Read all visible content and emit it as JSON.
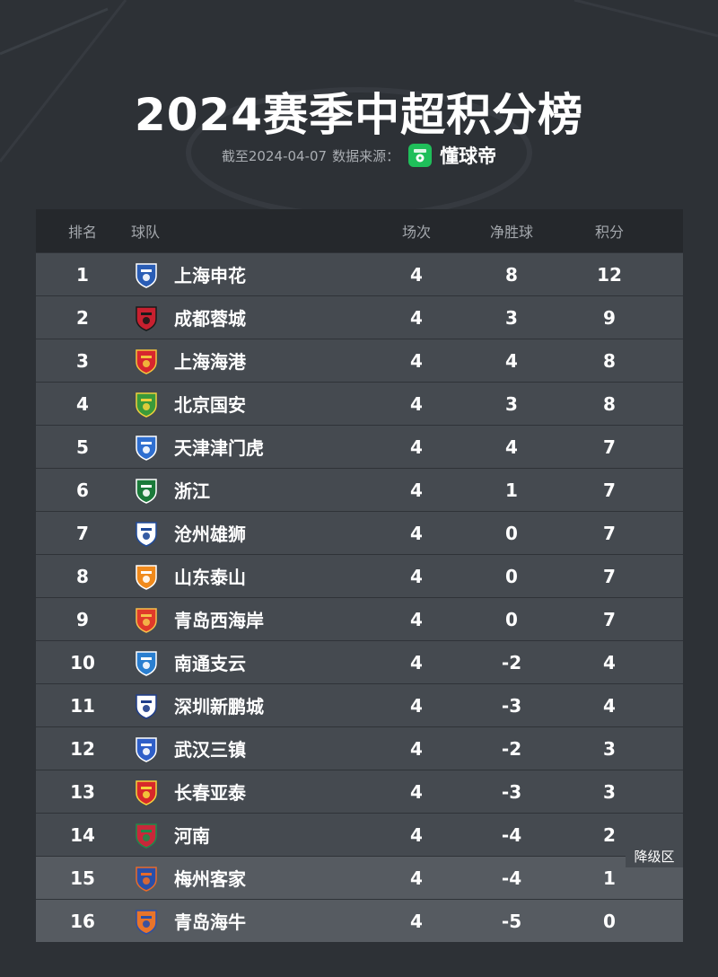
{
  "title": "2024赛季中超积分榜",
  "subtitle": {
    "as_of": "截至2024-04-07",
    "source_label": "数据来源：",
    "source_name": "懂球帝",
    "source_icon": "dongqiudi-logo-icon"
  },
  "table": {
    "headers": {
      "rank": "排名",
      "team": "球队",
      "played": "场次",
      "goal_diff": "净胜球",
      "points": "积分"
    },
    "rows": [
      {
        "rank": "1",
        "team": "上海申花",
        "played": "4",
        "goal_diff": "8",
        "points": "12",
        "badge_color": "#2a5db5",
        "badge_accent": "#ffffff"
      },
      {
        "rank": "2",
        "team": "成都蓉城",
        "played": "4",
        "goal_diff": "3",
        "points": "9",
        "badge_color": "#c8202f",
        "badge_accent": "#1a1a1a"
      },
      {
        "rank": "3",
        "team": "上海海港",
        "played": "4",
        "goal_diff": "4",
        "points": "8",
        "badge_color": "#d7262e",
        "badge_accent": "#f3c33c"
      },
      {
        "rank": "4",
        "team": "北京国安",
        "played": "4",
        "goal_diff": "3",
        "points": "8",
        "badge_color": "#3a9a3a",
        "badge_accent": "#f0d03c"
      },
      {
        "rank": "5",
        "team": "天津津门虎",
        "played": "4",
        "goal_diff": "4",
        "points": "7",
        "badge_color": "#2f6fd0",
        "badge_accent": "#ffffff"
      },
      {
        "rank": "6",
        "team": "浙江",
        "played": "4",
        "goal_diff": "1",
        "points": "7",
        "badge_color": "#1b7a3a",
        "badge_accent": "#ffffff"
      },
      {
        "rank": "7",
        "team": "沧州雄狮",
        "played": "4",
        "goal_diff": "0",
        "points": "7",
        "badge_color": "#ffffff",
        "badge_accent": "#1f4a9a"
      },
      {
        "rank": "8",
        "team": "山东泰山",
        "played": "4",
        "goal_diff": "0",
        "points": "7",
        "badge_color": "#f08a1c",
        "badge_accent": "#ffffff"
      },
      {
        "rank": "9",
        "team": "青岛西海岸",
        "played": "4",
        "goal_diff": "0",
        "points": "7",
        "badge_color": "#e03a2a",
        "badge_accent": "#f5c04a"
      },
      {
        "rank": "10",
        "team": "南通支云",
        "played": "4",
        "goal_diff": "-2",
        "points": "4",
        "badge_color": "#2a7fd0",
        "badge_accent": "#ffffff"
      },
      {
        "rank": "11",
        "team": "深圳新鹏城",
        "played": "4",
        "goal_diff": "-3",
        "points": "4",
        "badge_color": "#ffffff",
        "badge_accent": "#1f3d8a"
      },
      {
        "rank": "12",
        "team": "武汉三镇",
        "played": "4",
        "goal_diff": "-2",
        "points": "3",
        "badge_color": "#2f5fc8",
        "badge_accent": "#ffffff"
      },
      {
        "rank": "13",
        "team": "长春亚泰",
        "played": "4",
        "goal_diff": "-3",
        "points": "3",
        "badge_color": "#d8282a",
        "badge_accent": "#f5d23c"
      },
      {
        "rank": "14",
        "team": "河南",
        "played": "4",
        "goal_diff": "-4",
        "points": "2",
        "badge_color": "#c8283a",
        "badge_accent": "#1f8a4a"
      },
      {
        "rank": "15",
        "team": "梅州客家",
        "played": "4",
        "goal_diff": "-4",
        "points": "1",
        "badge_color": "#2a4fa8",
        "badge_accent": "#e86a2a"
      },
      {
        "rank": "16",
        "team": "青岛海牛",
        "played": "4",
        "goal_diff": "-5",
        "points": "0",
        "badge_color": "#e8742a",
        "badge_accent": "#2a4fa8"
      }
    ]
  },
  "relegation_label": "降级区",
  "colors": {
    "background": "#2d3136",
    "header_bg": "#25282c",
    "row_bg": "#454a50",
    "relegation_row_bg": "#565b61",
    "source_green": "#1fbf5a"
  }
}
